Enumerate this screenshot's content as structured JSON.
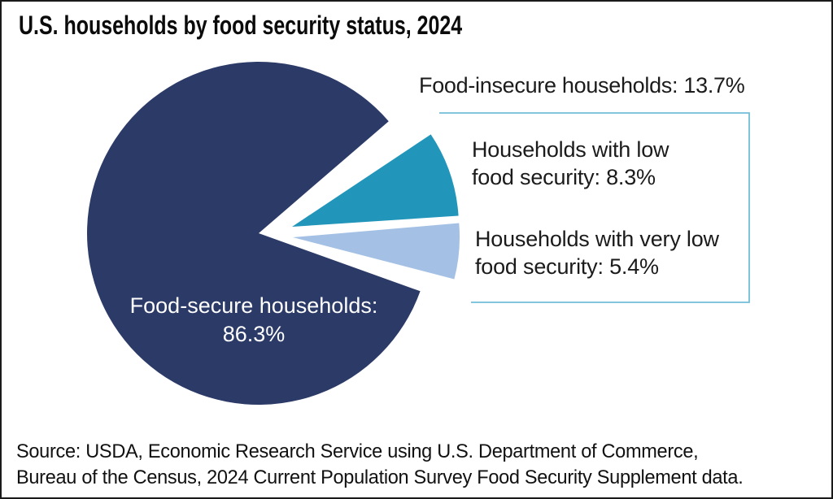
{
  "chart_data": {
    "type": "pie",
    "title": "U.S. households by food security status, 2024",
    "slices": [
      {
        "name": "food-secure",
        "label": "Food-secure households",
        "value": 86.3,
        "color": "#2b3a67"
      },
      {
        "name": "low-food-security",
        "label": "Households with low food security",
        "value": 8.3,
        "color": "#2196ba"
      },
      {
        "name": "very-low-food-security",
        "label": "Households with very low food security",
        "value": 5.4,
        "color": "#a4c1e5"
      }
    ],
    "group_annotation": {
      "label": "Food-insecure households: 13.7%",
      "value": 13.7
    },
    "callout_box_color": "#72bdd8",
    "legend_position": "right-callout",
    "labels_on_chart": true
  },
  "pie_label": {
    "line1": "Food-secure households:",
    "line2": "86.3%"
  },
  "callout": {
    "header": "Food-insecure households: 13.7%",
    "items": [
      {
        "line1": "Households with low",
        "line2": "food security: 8.3%"
      },
      {
        "line1": "Households with very low",
        "line2": "food security: 5.4%"
      }
    ]
  },
  "source": {
    "line1": "Source: USDA, Economic Research Service using U.S. Department of Commerce,",
    "line2": "Bureau of the Census, 2024 Current Population Survey Food Security Supplement data."
  }
}
